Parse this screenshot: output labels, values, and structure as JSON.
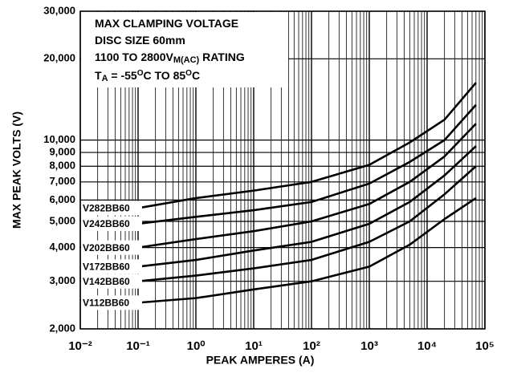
{
  "chart_data": {
    "type": "line",
    "xlog": true,
    "ylog": true,
    "grid": true,
    "xminor": true,
    "ylabel": "MAX PEAK VOLTS (V)",
    "xlabel": "PEAK AMPERES (A)",
    "annotation": [
      [
        {
          "text": "MAX CLAMPING VOLTAGE"
        }
      ],
      [
        {
          "text": "DISC SIZE 60mm"
        }
      ],
      [
        {
          "text": "1100 TO 2800V"
        },
        {
          "text": "M(AC)",
          "sub": true
        },
        {
          "text": " RATING"
        }
      ],
      [
        {
          "text": "T"
        },
        {
          "text": "A",
          "sub": true
        },
        {
          "text": " = -55"
        },
        {
          "text": "O",
          "sup": true
        },
        {
          "text": "C TO 85"
        },
        {
          "text": "O",
          "sup": true
        },
        {
          "text": "C"
        }
      ]
    ],
    "xlim": [
      0.01,
      100000
    ],
    "ylim": [
      2000,
      30000
    ],
    "xticks": [
      {
        "value": 0.01,
        "label": "10⁻²"
      },
      {
        "value": 0.1,
        "label": "10⁻¹"
      },
      {
        "value": 1,
        "label": "10⁰"
      },
      {
        "value": 10,
        "label": "10¹"
      },
      {
        "value": 100,
        "label": "10²"
      },
      {
        "value": 1000,
        "label": "10³"
      },
      {
        "value": 10000,
        "label": "10⁴"
      },
      {
        "value": 100000,
        "label": "10⁵"
      }
    ],
    "yticks": [
      {
        "value": 2000,
        "label": "2,000"
      },
      {
        "value": 3000,
        "label": "3,000"
      },
      {
        "value": 4000,
        "label": "4,000"
      },
      {
        "value": 5000,
        "label": "5,000"
      },
      {
        "value": 6000,
        "label": "6,000"
      },
      {
        "value": 7000,
        "label": "7,000"
      },
      {
        "value": 8000,
        "label": "8,000"
      },
      {
        "value": 9000,
        "label": "9,000"
      },
      {
        "value": 10000,
        "label": "10,000"
      },
      {
        "value": 20000,
        "label": "20,000"
      },
      {
        "value": 30000,
        "label": "30,000"
      }
    ],
    "x": [
      0.1,
      1,
      10,
      100,
      1000,
      5000,
      20000,
      70000
    ],
    "series": [
      {
        "name": "V282BB60",
        "color": "#000000",
        "values": [
          5600,
          6100,
          6500,
          7000,
          8100,
          9800,
          11900,
          16300
        ]
      },
      {
        "name": "V242BB60",
        "color": "#000000",
        "values": [
          4900,
          5200,
          5500,
          5900,
          6900,
          8300,
          10000,
          13500
        ]
      },
      {
        "name": "V202BB60",
        "color": "#000000",
        "values": [
          4000,
          4300,
          4600,
          5000,
          5800,
          7000,
          8700,
          11500
        ]
      },
      {
        "name": "V172BB60",
        "color": "#000000",
        "values": [
          3400,
          3600,
          3900,
          4200,
          4900,
          5900,
          7400,
          9500
        ]
      },
      {
        "name": "V142BB60",
        "color": "#000000",
        "values": [
          3000,
          3150,
          3350,
          3600,
          4200,
          5000,
          6300,
          8000
        ]
      },
      {
        "name": "V112BB60",
        "color": "#000000",
        "values": [
          2500,
          2600,
          2800,
          3000,
          3400,
          4100,
          5100,
          6100
        ]
      }
    ]
  }
}
